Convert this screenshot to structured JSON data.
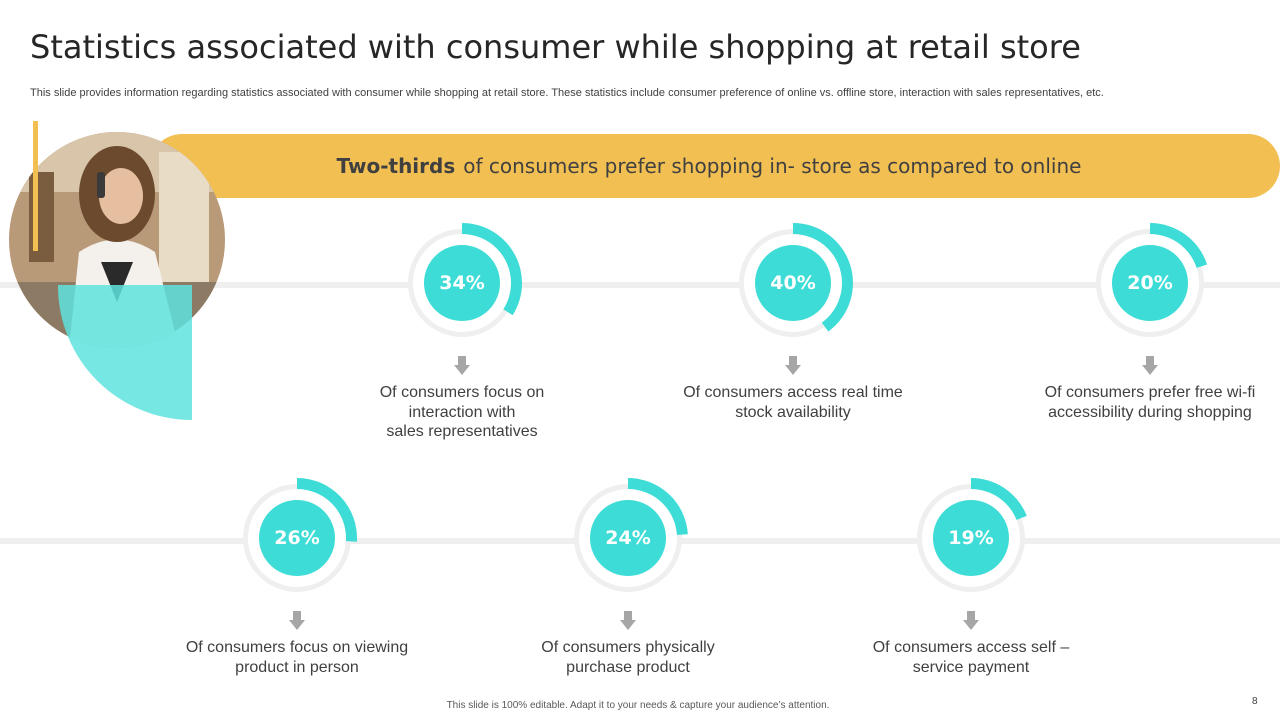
{
  "slide": {
    "title": "Statistics associated with consumer while shopping at retail store",
    "subtitle": "This slide provides information regarding statistics associated with consumer while shopping at retail store. These statistics include consumer preference of online vs. offline store, interaction with sales representatives, etc.",
    "banner": {
      "highlight": "Two-thirds",
      "text": "of consumers prefer shopping in- store as compared to online"
    },
    "footer": "This slide is 100% editable. Adapt it to your needs & capture your audience’s attention.",
    "page_number": "8"
  },
  "stats": [
    {
      "percent_label": "34%",
      "value": 34,
      "lines": [
        "Of consumers focus on",
        "interaction with",
        "sales representatives"
      ]
    },
    {
      "percent_label": "40%",
      "value": 40,
      "lines": [
        "Of consumers access real time",
        "stock availability"
      ]
    },
    {
      "percent_label": "20%",
      "value": 20,
      "lines": [
        "Of consumers prefer free wi-fi",
        "accessibility during shopping"
      ]
    },
    {
      "percent_label": "26%",
      "value": 26,
      "lines": [
        "Of consumers focus on viewing",
        "product in person"
      ]
    },
    {
      "percent_label": "24%",
      "value": 24,
      "lines": [
        "Of consumers physically",
        "purchase product"
      ]
    },
    {
      "percent_label": "19%",
      "value": 19,
      "lines": [
        "Of consumers access self –",
        "service payment"
      ]
    }
  ],
  "colors": {
    "accent_yellow": "#f2bf52",
    "teal": "#3ddcd6",
    "ring_gray": "#efefef",
    "arrow_gray": "#a6a6a6"
  }
}
